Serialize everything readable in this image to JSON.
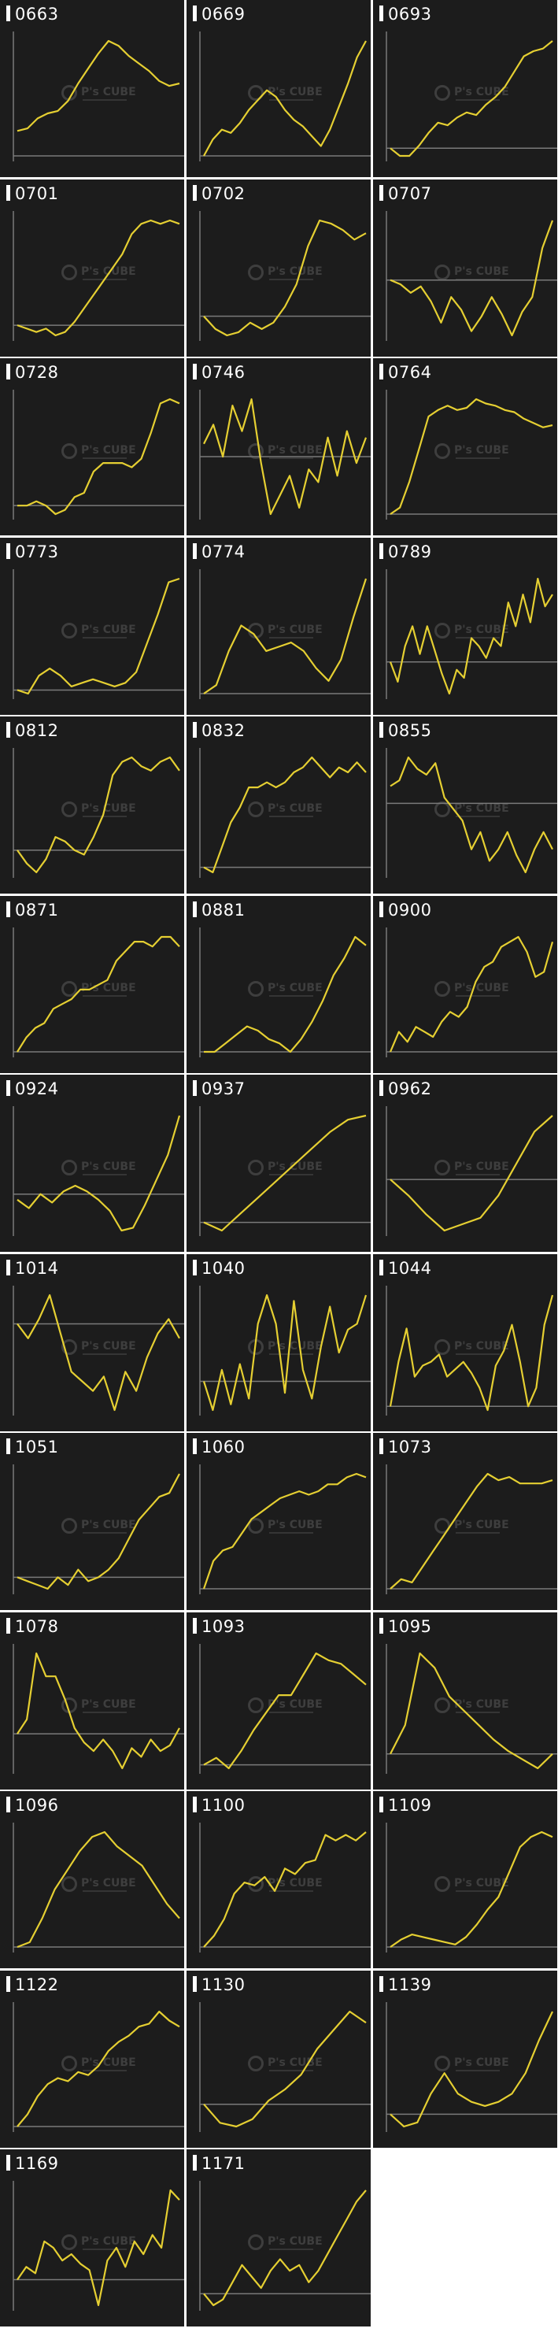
{
  "colors": {
    "background": "#1c1c1c",
    "line": "#e5cf32",
    "axis": "#7a7a7a",
    "label": "#ffffff"
  },
  "watermark": {
    "icon": "hexagon-logo-icon",
    "text": "P's CUBE"
  },
  "chart_data": [
    {
      "type": "line",
      "title": "0663",
      "values": [
        10,
        11,
        15,
        17,
        18,
        22,
        29,
        35,
        41,
        46,
        44,
        40,
        37,
        34,
        30,
        28,
        29
      ]
    },
    {
      "type": "line",
      "title": "0669",
      "values": [
        0,
        5,
        8,
        7,
        10,
        14,
        17,
        20,
        18,
        14,
        11,
        9,
        6,
        3,
        8,
        15,
        22,
        30,
        35
      ]
    },
    {
      "type": "line",
      "title": "0693",
      "values": [
        0,
        -3,
        -3,
        1,
        6,
        10,
        9,
        12,
        14,
        13,
        17,
        20,
        24,
        30,
        36,
        38,
        39,
        42
      ]
    },
    {
      "type": "line",
      "title": "0701",
      "values": [
        0,
        -1,
        -2,
        -1,
        -3,
        -2,
        1,
        5,
        9,
        13,
        17,
        21,
        27,
        30,
        31,
        30,
        31,
        30
      ]
    },
    {
      "type": "line",
      "title": "0702",
      "values": [
        0,
        -4,
        -6,
        -5,
        -2,
        -4,
        -2,
        3,
        10,
        22,
        30,
        29,
        27,
        24,
        26
      ]
    },
    {
      "type": "line",
      "title": "0707",
      "values": [
        0,
        -2,
        -6,
        -3,
        -10,
        -20,
        -8,
        -14,
        -24,
        -17,
        -8,
        -16,
        -26,
        -15,
        -8,
        15,
        28
      ]
    },
    {
      "type": "line",
      "title": "0728",
      "values": [
        0,
        0,
        1,
        0,
        -2,
        -1,
        2,
        3,
        8,
        10,
        10,
        10,
        9,
        11,
        17,
        24,
        25,
        24
      ]
    },
    {
      "type": "line",
      "title": "0746",
      "values": [
        2,
        5,
        0,
        8,
        4,
        9,
        -1,
        -9,
        -6,
        -3,
        -8,
        -2,
        -4,
        3,
        -3,
        4,
        -1,
        3
      ]
    },
    {
      "type": "line",
      "title": "0764",
      "values": [
        0,
        3,
        15,
        30,
        45,
        48,
        50,
        48,
        49,
        53,
        51,
        50,
        48,
        47,
        44,
        42,
        40,
        41
      ]
    },
    {
      "type": "line",
      "title": "0773",
      "values": [
        0,
        -1,
        4,
        6,
        4,
        1,
        2,
        3,
        2,
        1,
        2,
        5,
        13,
        21,
        30,
        31
      ]
    },
    {
      "type": "line",
      "title": "0774",
      "values": [
        0,
        2,
        10,
        16,
        14,
        10,
        11,
        12,
        10,
        6,
        3,
        8,
        18,
        27
      ]
    },
    {
      "type": "line",
      "title": "0789",
      "values": [
        0,
        -5,
        4,
        9,
        2,
        9,
        3,
        -3,
        -8,
        -2,
        -4,
        6,
        4,
        1,
        6,
        4,
        15,
        9,
        17,
        10,
        21,
        14,
        17
      ]
    },
    {
      "type": "line",
      "title": "0812",
      "values": [
        0,
        -3,
        -5,
        -2,
        3,
        2,
        0,
        -1,
        3,
        8,
        17,
        20,
        21,
        19,
        18,
        20,
        21,
        18
      ]
    },
    {
      "type": "line",
      "title": "0832",
      "values": [
        0,
        -1,
        4,
        9,
        12,
        16,
        16,
        17,
        16,
        17,
        19,
        20,
        22,
        20,
        18,
        20,
        19,
        21,
        19
      ]
    },
    {
      "type": "line",
      "title": "0855",
      "values": [
        3,
        4,
        8,
        6,
        5,
        7,
        1,
        -1,
        -3,
        -8,
        -5,
        -10,
        -8,
        -5,
        -9,
        -12,
        -8,
        -5,
        -8
      ]
    },
    {
      "type": "line",
      "title": "0871",
      "values": [
        0,
        3,
        5,
        6,
        9,
        10,
        11,
        13,
        13,
        14,
        15,
        19,
        21,
        23,
        23,
        22,
        24,
        24,
        22
      ]
    },
    {
      "type": "line",
      "title": "0881",
      "values": [
        0,
        0,
        2,
        4,
        6,
        5,
        3,
        2,
        0,
        3,
        7,
        12,
        18,
        22,
        27,
        25
      ]
    },
    {
      "type": "line",
      "title": "0900",
      "values": [
        0,
        4,
        2,
        5,
        4,
        3,
        6,
        8,
        7,
        9,
        14,
        17,
        18,
        21,
        22,
        23,
        20,
        15,
        16,
        22
      ]
    },
    {
      "type": "line",
      "title": "0924",
      "values": [
        -2,
        -5,
        0,
        -3,
        1,
        3,
        1,
        -2,
        -6,
        -13,
        -12,
        -4,
        5,
        14,
        28
      ]
    },
    {
      "type": "line",
      "title": "0937",
      "values": [
        0,
        -2,
        2,
        6,
        10,
        14,
        18,
        22,
        25,
        26
      ]
    },
    {
      "type": "line",
      "title": "0962",
      "values": [
        0,
        -5,
        -11,
        -16,
        -14,
        -12,
        -5,
        5,
        15,
        20
      ]
    },
    {
      "type": "line",
      "title": "1014",
      "values": [
        0,
        -3,
        1,
        6,
        -2,
        -10,
        -12,
        -14,
        -11,
        -18,
        -10,
        -14,
        -7,
        -2,
        1,
        -3
      ]
    },
    {
      "type": "line",
      "title": "1040",
      "values": [
        0,
        -5,
        2,
        -4,
        3,
        -3,
        10,
        15,
        10,
        -2,
        14,
        2,
        -3,
        6,
        13,
        5,
        9,
        10,
        15
      ]
    },
    {
      "type": "line",
      "title": "1044",
      "values": [
        0,
        12,
        21,
        8,
        11,
        12,
        14,
        8,
        10,
        12,
        9,
        5,
        -1,
        11,
        15,
        22,
        12,
        0,
        5,
        22,
        30
      ]
    },
    {
      "type": "line",
      "title": "1051",
      "values": [
        0,
        -1,
        -2,
        -3,
        0,
        -2,
        2,
        -1,
        0,
        2,
        5,
        10,
        15,
        18,
        21,
        22,
        27
      ]
    },
    {
      "type": "line",
      "title": "1060",
      "values": [
        0,
        8,
        11,
        12,
        16,
        20,
        22,
        24,
        26,
        27,
        28,
        27,
        28,
        30,
        30,
        32,
        33,
        32
      ]
    },
    {
      "type": "line",
      "title": "1073",
      "values": [
        0,
        3,
        2,
        7,
        12,
        17,
        22,
        27,
        32,
        36,
        34,
        35,
        33,
        33,
        33,
        34
      ]
    },
    {
      "type": "line",
      "title": "1078",
      "values": [
        0,
        5,
        28,
        20,
        20,
        12,
        2,
        -3,
        -6,
        -2,
        -6,
        -12,
        -5,
        -8,
        -2,
        -6,
        -4,
        2
      ]
    },
    {
      "type": "line",
      "title": "1093",
      "values": [
        0,
        2,
        -1,
        4,
        10,
        15,
        20,
        20,
        26,
        32,
        30,
        29,
        26,
        23
      ]
    },
    {
      "type": "line",
      "title": "1095",
      "values": [
        0,
        10,
        35,
        30,
        20,
        15,
        10,
        5,
        1,
        -2,
        -5,
        0
      ]
    },
    {
      "type": "line",
      "title": "1096",
      "values": [
        0,
        1,
        6,
        12,
        16,
        20,
        23,
        24,
        21,
        19,
        17,
        13,
        9,
        6
      ]
    },
    {
      "type": "line",
      "title": "1100",
      "values": [
        0,
        4,
        10,
        19,
        23,
        22,
        25,
        20,
        28,
        26,
        30,
        31,
        40,
        38,
        40,
        38,
        41
      ]
    },
    {
      "type": "line",
      "title": "1109",
      "values": [
        0,
        3,
        5,
        4,
        3,
        2,
        1,
        4,
        9,
        15,
        20,
        30,
        40,
        44,
        46,
        44
      ]
    },
    {
      "type": "line",
      "title": "1122",
      "values": [
        0,
        4,
        10,
        14,
        16,
        15,
        18,
        17,
        20,
        25,
        28,
        30,
        33,
        34,
        38,
        35,
        33
      ]
    },
    {
      "type": "line",
      "title": "1130",
      "values": [
        0,
        -5,
        -6,
        -4,
        1,
        4,
        8,
        15,
        20,
        25,
        22
      ]
    },
    {
      "type": "line",
      "title": "1139",
      "values": [
        0,
        -3,
        -2,
        5,
        10,
        5,
        3,
        2,
        3,
        5,
        10,
        18,
        25
      ]
    },
    {
      "type": "line",
      "title": "1169",
      "values": [
        0,
        4,
        2,
        12,
        10,
        6,
        8,
        5,
        3,
        -8,
        6,
        10,
        4,
        12,
        8,
        14,
        10,
        28,
        25
      ]
    },
    {
      "type": "line",
      "title": "1171",
      "values": [
        0,
        -2,
        -1,
        2,
        5,
        3,
        1,
        4,
        6,
        4,
        5,
        2,
        4,
        7,
        10,
        13,
        16,
        18
      ]
    }
  ]
}
